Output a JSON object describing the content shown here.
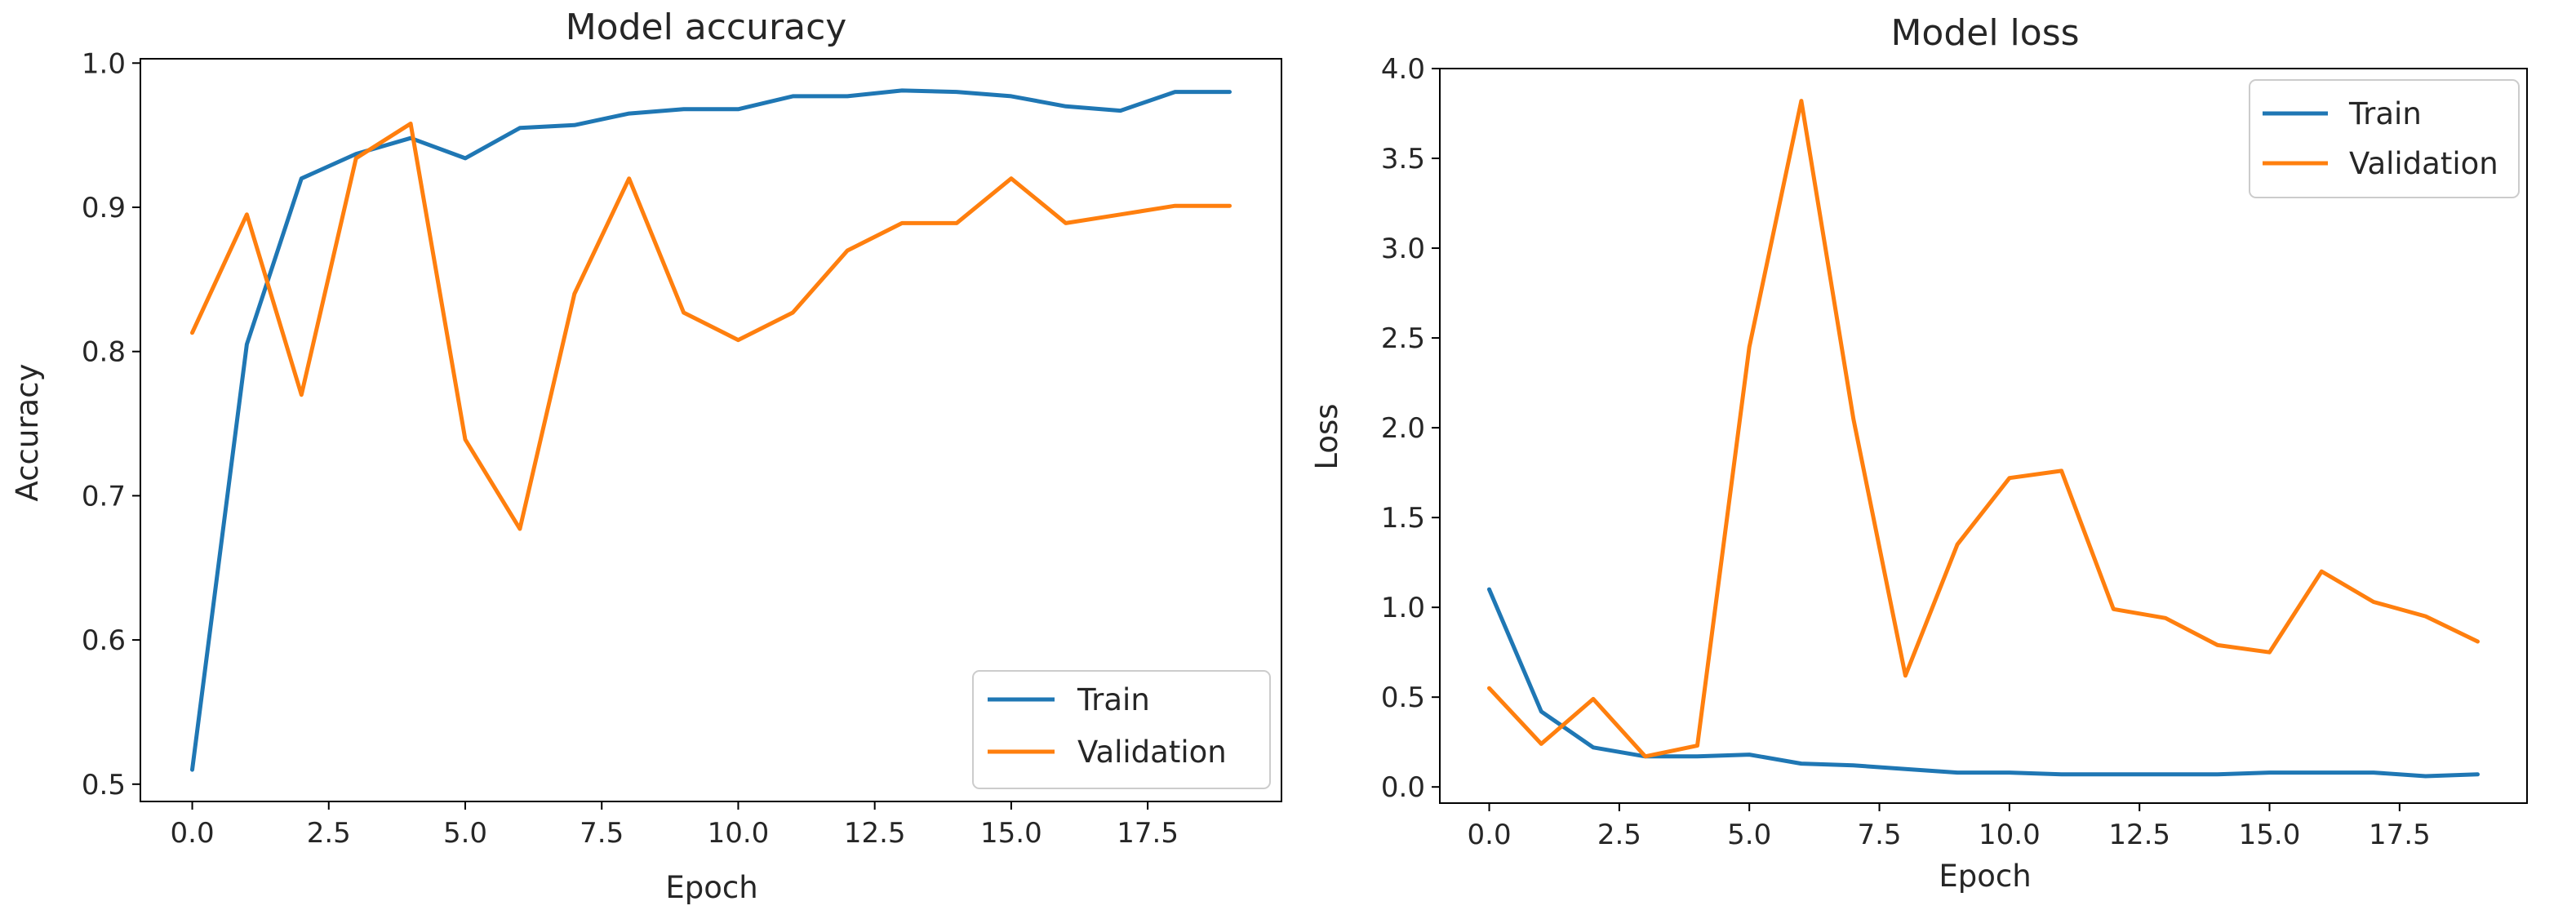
{
  "chart_data": [
    {
      "type": "line",
      "title": "Model accuracy",
      "xlabel": "Epoch",
      "ylabel": "Accuracy",
      "x": [
        0,
        1,
        2,
        3,
        4,
        5,
        6,
        7,
        8,
        9,
        10,
        11,
        12,
        13,
        14,
        15,
        16,
        17,
        18,
        19
      ],
      "xlim": [
        -0.95,
        19.95
      ],
      "ylim": [
        0.488,
        1.003
      ],
      "xticks": [
        0,
        2.5,
        5,
        7.5,
        10,
        12.5,
        15,
        17.5
      ],
      "xtick_labels": [
        "0.0",
        "2.5",
        "5.0",
        "7.5",
        "10.0",
        "12.5",
        "15.0",
        "17.5"
      ],
      "yticks": [
        0.5,
        0.6,
        0.7,
        0.8,
        0.9,
        1.0
      ],
      "ytick_labels": [
        "0.5",
        "0.6",
        "0.7",
        "0.8",
        "0.9",
        "1.0"
      ],
      "legend_position": "lower-right",
      "series": [
        {
          "name": "Train",
          "color": "#1f77b4",
          "values": [
            0.51,
            0.805,
            0.92,
            0.937,
            0.948,
            0.934,
            0.955,
            0.957,
            0.965,
            0.968,
            0.968,
            0.977,
            0.977,
            0.981,
            0.98,
            0.977,
            0.97,
            0.967,
            0.98,
            0.98
          ]
        },
        {
          "name": "Validation",
          "color": "#ff7f0e",
          "values": [
            0.813,
            0.895,
            0.77,
            0.934,
            0.958,
            0.739,
            0.677,
            0.84,
            0.92,
            0.827,
            0.808,
            0.827,
            0.87,
            0.889,
            0.889,
            0.92,
            0.889,
            0.895,
            0.901,
            0.901
          ]
        }
      ]
    },
    {
      "type": "line",
      "title": "Model loss",
      "xlabel": "Epoch",
      "ylabel": "Loss",
      "x": [
        0,
        1,
        2,
        3,
        4,
        5,
        6,
        7,
        8,
        9,
        10,
        11,
        12,
        13,
        14,
        15,
        16,
        17,
        18,
        19
      ],
      "xlim": [
        -0.95,
        19.95
      ],
      "ylim": [
        -0.09,
        4.0
      ],
      "xticks": [
        0,
        2.5,
        5,
        7.5,
        10,
        12.5,
        15,
        17.5
      ],
      "xtick_labels": [
        "0.0",
        "2.5",
        "5.0",
        "7.5",
        "10.0",
        "12.5",
        "15.0",
        "17.5"
      ],
      "yticks": [
        0,
        0.5,
        1.0,
        1.5,
        2.0,
        2.5,
        3.0,
        3.5,
        4.0
      ],
      "ytick_labels": [
        "0.0",
        "0.5",
        "1.0",
        "1.5",
        "2.0",
        "2.5",
        "3.0",
        "3.5",
        "4.0"
      ],
      "legend_position": "upper-right",
      "series": [
        {
          "name": "Train",
          "color": "#1f77b4",
          "values": [
            1.1,
            0.42,
            0.22,
            0.17,
            0.17,
            0.18,
            0.13,
            0.12,
            0.1,
            0.08,
            0.08,
            0.07,
            0.07,
            0.07,
            0.07,
            0.08,
            0.08,
            0.08,
            0.06,
            0.07
          ]
        },
        {
          "name": "Validation",
          "color": "#ff7f0e",
          "values": [
            0.55,
            0.24,
            0.49,
            0.17,
            0.23,
            2.45,
            3.82,
            2.05,
            0.62,
            1.35,
            1.72,
            1.76,
            0.99,
            0.94,
            0.79,
            0.75,
            1.2,
            1.03,
            0.95,
            0.81
          ]
        }
      ]
    }
  ]
}
